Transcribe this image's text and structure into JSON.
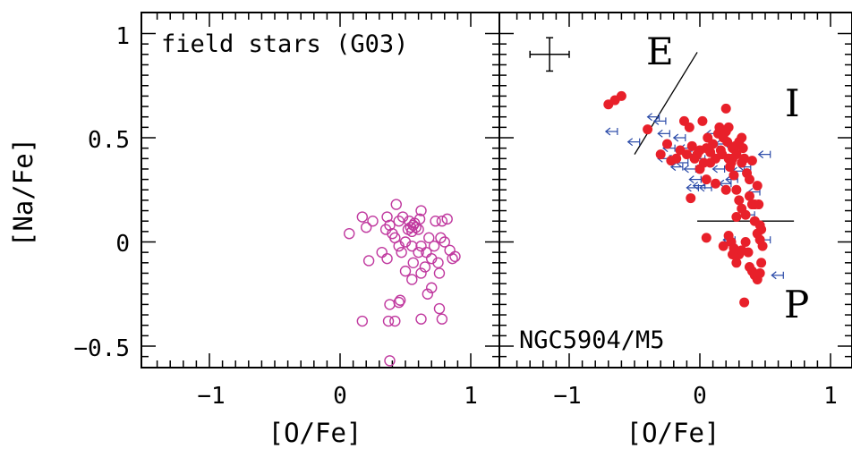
{
  "chart_data": [
    {
      "type": "scatter",
      "panel_label": "field stars (G03)",
      "xlabel": "[O/Fe]",
      "ylabel": "[Na/Fe]",
      "xlim": [
        -1.45,
        1.1
      ],
      "ylim": [
        -0.6,
        1.1
      ],
      "x_ticks": [
        "−1",
        "0",
        "1"
      ],
      "y_ticks": [
        "−0.5",
        "0",
        "0.5",
        "1"
      ],
      "marker": "open-circle",
      "color": "#c0399f",
      "points": [
        [
          0.07,
          0.04
        ],
        [
          0.17,
          0.12
        ],
        [
          0.2,
          0.07
        ],
        [
          0.25,
          0.1
        ],
        [
          0.22,
          -0.09
        ],
        [
          0.32,
          -0.05
        ],
        [
          0.35,
          0.06
        ],
        [
          0.36,
          0.12
        ],
        [
          0.38,
          0.08
        ],
        [
          0.4,
          0.04
        ],
        [
          0.43,
          0.18
        ],
        [
          0.45,
          0.1
        ],
        [
          0.47,
          -0.05
        ],
        [
          0.48,
          0.12
        ],
        [
          0.5,
          0.0
        ],
        [
          0.52,
          0.06
        ],
        [
          0.53,
          0.1
        ],
        [
          0.54,
          0.07
        ],
        [
          0.55,
          0.05
        ],
        [
          0.56,
          0.08
        ],
        [
          0.57,
          0.09
        ],
        [
          0.58,
          0.07
        ],
        [
          0.6,
          0.06
        ],
        [
          0.62,
          0.15
        ],
        [
          0.42,
          0.02
        ],
        [
          0.45,
          -0.02
        ],
        [
          0.5,
          -0.14
        ],
        [
          0.55,
          -0.02
        ],
        [
          0.56,
          -0.1
        ],
        [
          0.6,
          -0.05
        ],
        [
          0.62,
          -0.02
        ],
        [
          0.65,
          -0.12
        ],
        [
          0.68,
          0.02
        ],
        [
          0.7,
          -0.08
        ],
        [
          0.72,
          -0.02
        ],
        [
          0.73,
          0.1
        ],
        [
          0.75,
          -0.1
        ],
        [
          0.77,
          0.02
        ],
        [
          0.78,
          0.1
        ],
        [
          0.8,
          0.0
        ],
        [
          0.82,
          0.11
        ],
        [
          0.84,
          -0.04
        ],
        [
          0.86,
          -0.08
        ],
        [
          0.88,
          -0.07
        ],
        [
          0.36,
          -0.08
        ],
        [
          0.38,
          -0.3
        ],
        [
          0.45,
          -0.29
        ],
        [
          0.46,
          -0.28
        ],
        [
          0.55,
          -0.18
        ],
        [
          0.62,
          -0.15
        ],
        [
          0.67,
          -0.25
        ],
        [
          0.7,
          -0.22
        ],
        [
          0.76,
          -0.15
        ],
        [
          0.17,
          -0.38
        ],
        [
          0.37,
          -0.38
        ],
        [
          0.62,
          -0.37
        ],
        [
          0.76,
          -0.32
        ],
        [
          0.78,
          -0.37
        ],
        [
          0.38,
          -0.57
        ],
        [
          0.42,
          -0.38
        ],
        [
          0.66,
          -0.05
        ],
        [
          0.61,
          0.11
        ]
      ]
    },
    {
      "type": "scatter",
      "panel_label": "NGC5904/M5",
      "xlabel": "[O/Fe]",
      "xlim": [
        -1.45,
        1.1
      ],
      "ylim": [
        -0.6,
        1.1
      ],
      "x_ticks": [
        "−1",
        "0",
        "1"
      ],
      "region_labels": [
        "E",
        "I",
        "P"
      ],
      "error_bar": {
        "x": -1.15,
        "y": 0.9,
        "xerr": 0.15,
        "yerr": 0.08
      },
      "lines": [
        {
          "x": [
            -0.5,
            -0.02
          ],
          "y": [
            0.42,
            0.91
          ]
        },
        {
          "x": [
            -0.02,
            0.72
          ],
          "y": [
            0.1,
            0.1
          ]
        }
      ],
      "detections": {
        "marker": "filled-circle",
        "color": "#e8202a",
        "points": [
          [
            -0.7,
            0.66
          ],
          [
            -0.65,
            0.68
          ],
          [
            -0.6,
            0.7
          ],
          [
            -0.4,
            0.54
          ],
          [
            -0.3,
            0.42
          ],
          [
            -0.25,
            0.47
          ],
          [
            -0.22,
            0.39
          ],
          [
            -0.18,
            0.4
          ],
          [
            -0.15,
            0.44
          ],
          [
            -0.12,
            0.58
          ],
          [
            -0.1,
            0.42
          ],
          [
            -0.08,
            0.55
          ],
          [
            -0.06,
            0.46
          ],
          [
            -0.04,
            0.4
          ],
          [
            -0.02,
            0.42
          ],
          [
            0.0,
            0.44
          ],
          [
            0.02,
            0.58
          ],
          [
            0.03,
            0.38
          ],
          [
            0.05,
            0.45
          ],
          [
            0.06,
            0.5
          ],
          [
            0.08,
            0.43
          ],
          [
            0.1,
            0.47
          ],
          [
            0.12,
            0.4
          ],
          [
            0.14,
            0.52
          ],
          [
            0.15,
            0.55
          ],
          [
            0.16,
            0.44
          ],
          [
            0.17,
            0.42
          ],
          [
            0.18,
            0.5
          ],
          [
            0.2,
            0.53
          ],
          [
            0.21,
            0.48
          ],
          [
            0.22,
            0.4
          ],
          [
            0.23,
            0.36
          ],
          [
            0.24,
            0.38
          ],
          [
            0.25,
            0.45
          ],
          [
            0.26,
            0.32
          ],
          [
            0.27,
            0.46
          ],
          [
            0.28,
            0.42
          ],
          [
            0.3,
            0.48
          ],
          [
            0.32,
            0.5
          ],
          [
            0.33,
            0.45
          ],
          [
            0.34,
            0.4
          ],
          [
            0.36,
            0.33
          ],
          [
            0.38,
            0.3
          ],
          [
            0.4,
            0.39
          ],
          [
            0.42,
            0.18
          ],
          [
            0.44,
            0.27
          ],
          [
            0.45,
            0.18
          ],
          [
            0.46,
            0.08
          ],
          [
            0.47,
            0.06
          ],
          [
            0.2,
            0.64
          ],
          [
            0.22,
            0.55
          ],
          [
            0.0,
            0.35
          ],
          [
            0.05,
            0.3
          ],
          [
            0.12,
            0.28
          ],
          [
            0.2,
            0.25
          ],
          [
            0.28,
            0.25
          ],
          [
            0.3,
            0.2
          ],
          [
            0.32,
            0.16
          ],
          [
            0.35,
            0.13
          ],
          [
            0.38,
            0.22
          ],
          [
            0.4,
            0.18
          ],
          [
            0.42,
            0.1
          ],
          [
            0.44,
            0.04
          ],
          [
            0.46,
            0.01
          ],
          [
            0.48,
            -0.02
          ],
          [
            0.22,
            0.03
          ],
          [
            0.24,
            0.0
          ],
          [
            0.25,
            -0.06
          ],
          [
            0.26,
            -0.03
          ],
          [
            0.28,
            -0.1
          ],
          [
            0.3,
            -0.06
          ],
          [
            0.32,
            -0.04
          ],
          [
            0.35,
            0.0
          ],
          [
            0.37,
            -0.05
          ],
          [
            0.38,
            -0.12
          ],
          [
            0.4,
            -0.14
          ],
          [
            0.42,
            -0.16
          ],
          [
            0.44,
            -0.18
          ],
          [
            0.46,
            -0.15
          ],
          [
            0.47,
            -0.1
          ],
          [
            0.34,
            -0.29
          ],
          [
            0.05,
            0.02
          ],
          [
            0.18,
            -0.02
          ],
          [
            0.28,
            0.12
          ],
          [
            -0.07,
            0.21
          ],
          [
            0.25,
            0.4
          ],
          [
            0.32,
            0.38
          ],
          [
            0.08,
            0.38
          ]
        ]
      },
      "upper_limits": {
        "marker": "left-arrow-with-errorbar",
        "color": "#2a4aa8",
        "points": [
          [
            -0.72,
            0.53
          ],
          [
            -0.55,
            0.48
          ],
          [
            -0.4,
            0.6
          ],
          [
            -0.35,
            0.58
          ],
          [
            -0.32,
            0.52
          ],
          [
            -0.28,
            0.45
          ],
          [
            -0.25,
            0.4
          ],
          [
            -0.2,
            0.5
          ],
          [
            -0.18,
            0.38
          ],
          [
            -0.15,
            0.45
          ],
          [
            -0.12,
            0.35
          ],
          [
            -0.1,
            0.42
          ],
          [
            -0.05,
            0.4
          ],
          [
            0.0,
            0.38
          ],
          [
            -0.08,
            0.3
          ],
          [
            -0.05,
            0.27
          ],
          [
            0.0,
            0.26
          ],
          [
            0.1,
            0.35
          ],
          [
            0.15,
            0.28
          ],
          [
            0.2,
            0.3
          ],
          [
            0.25,
            0.34
          ],
          [
            0.3,
            0.36
          ],
          [
            0.37,
            0.24
          ],
          [
            0.45,
            0.42
          ],
          [
            0.12,
            0.47
          ],
          [
            0.05,
            0.52
          ],
          [
            -0.32,
            0.4
          ],
          [
            -0.22,
            0.36
          ],
          [
            0.18,
            0.01
          ],
          [
            0.33,
            0.13
          ],
          [
            0.45,
            0.01
          ],
          [
            0.55,
            -0.16
          ],
          [
            -0.1,
            0.26
          ]
        ]
      }
    }
  ]
}
